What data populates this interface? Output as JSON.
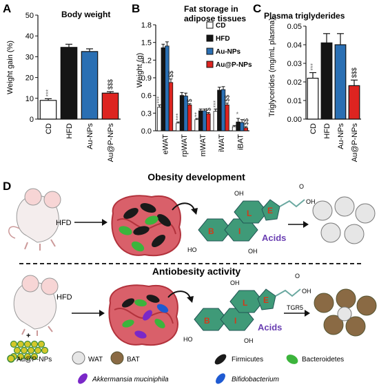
{
  "panels": [
    {
      "id": "A",
      "letter": "A",
      "title": "Body weight",
      "chart_data": {
        "type": "bar",
        "title": "Body weight",
        "ylabel": "Weight gain (%)",
        "xlabel": "",
        "ylim": [
          0,
          50
        ],
        "yticks": [
          0,
          10,
          20,
          30,
          40,
          50
        ],
        "categories": [
          "CD",
          "HFD",
          "Au-NPs",
          "Au@P-NPs"
        ],
        "values": [
          9,
          34.5,
          32.5,
          12.5
        ],
        "errors": [
          0.8,
          1.5,
          1.3,
          0.7
        ],
        "colors": [
          "#ffffff",
          "#151515",
          "#2a6fb3",
          "#dd2420"
        ],
        "annotations": [
          "***",
          "",
          "",
          "$$$"
        ],
        "grid": false
      }
    },
    {
      "id": "B",
      "letter": "B",
      "title_lines": [
        "Fat storage in",
        "adipose tissues"
      ],
      "chart_data": {
        "type": "bar",
        "title": "Fat storage in adipose tissues",
        "ylabel": "Weight (g)",
        "xlabel": "",
        "ylim": [
          0,
          1.8
        ],
        "yticks": [
          "0.0",
          "0.3",
          "0.6",
          "0.9",
          "1.2",
          "1.5",
          "1.8"
        ],
        "categories": [
          "eWAT",
          "rpWAT",
          "mWAT",
          "iWAT",
          "iBAT"
        ],
        "legend": "top-right",
        "series": [
          {
            "name": "CD",
            "color": "#ffffff",
            "values": [
              0.4,
              0.13,
              0.19,
              0.33,
              0.07
            ],
            "errors": [
              0.04,
              0.02,
              0.02,
              0.04,
              0.02
            ],
            "annotations": [
              "***",
              "***",
              "**",
              "***",
              ""
            ]
          },
          {
            "name": "HFD",
            "color": "#151515",
            "values": [
              1.41,
              0.6,
              0.34,
              0.69,
              0.15
            ],
            "errors": [
              0.06,
              0.05,
              0.03,
              0.05,
              0.06
            ],
            "annotations": [
              "",
              "",
              "",
              "",
              ""
            ]
          },
          {
            "name": "Au-NPs",
            "color": "#2a6fb3",
            "values": [
              1.44,
              0.59,
              0.34,
              0.7,
              0.14
            ],
            "errors": [
              0.07,
              0.05,
              0.03,
              0.05,
              0.05
            ],
            "annotations": [
              "",
              "",
              "",
              "",
              ""
            ]
          },
          {
            "name": "Au@P-NPs",
            "color": "#dd2420",
            "values": [
              0.82,
              0.44,
              0.29,
              0.44,
              0.05
            ],
            "errors": [
              0.06,
              0.02,
              0.02,
              0.03,
              0.02
            ],
            "annotations": [
              "$$",
              "$",
              "$",
              "$$",
              "$$"
            ]
          }
        ],
        "extra_annotations": [
          {
            "category": "iBAT",
            "series": "HFD",
            "text": "*"
          }
        ],
        "grid": false
      }
    },
    {
      "id": "C",
      "letter": "C",
      "title": "Plasma triglyderides",
      "chart_data": {
        "type": "bar",
        "title": "Plasma triglyderides",
        "ylabel": "Triglycerides (mg/mL plasma)",
        "xlabel": "",
        "ylim": [
          0,
          0.05
        ],
        "yticks": [
          "0.00",
          "0.01",
          "0.02",
          "0.03",
          "0.04",
          "0.05"
        ],
        "categories": [
          "CD",
          "HFD",
          "Au-NPs",
          "Au@P-NPs"
        ],
        "values": [
          0.022,
          0.041,
          0.04,
          0.018
        ],
        "errors": [
          0.003,
          0.005,
          0.006,
          0.003
        ],
        "colors": [
          "#ffffff",
          "#151515",
          "#2a6fb3",
          "#dd2420"
        ],
        "annotations": [
          "***",
          "",
          "",
          "$$$"
        ],
        "grid": false
      }
    }
  ],
  "diagram": {
    "letter": "D",
    "top_title": "Obesity development",
    "bottom_title": "Antiobesity activity",
    "hfd_label_top": "HFD",
    "hfd_label_bottom": "HFD",
    "plus": "+",
    "acids_label": "Acids",
    "rings": [
      "B",
      "I",
      "L",
      "E"
    ],
    "oh": "OH",
    "ho": "HO",
    "o": "O",
    "tgr5": "TGR5",
    "legend": {
      "np": "Au@P-NPs",
      "wat": "WAT",
      "bat": "BAT",
      "firmicutes": "Firmicutes",
      "bacteroidetes": "Bacteroidetes",
      "akkermansia": "Akkermansia muciniphila",
      "bifido": "Bifidobacterium"
    },
    "colors": {
      "firmicutes": "#1a1a1a",
      "bacteroidetes": "#3cb43c",
      "akkermansia": "#7a28c8",
      "bifido": "#1e5ad2",
      "gut": "#d9606a",
      "gut_dark": "#b2323c",
      "steroid": "#3f9a78",
      "np": "#d4c82a",
      "bat": "#8a6a44"
    }
  }
}
